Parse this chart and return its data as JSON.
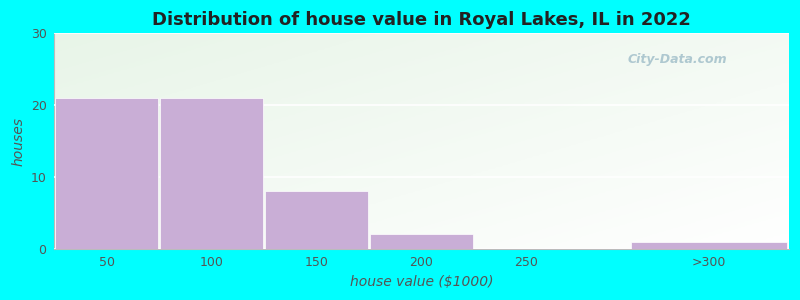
{
  "title": "Distribution of house value in Royal Lakes, IL in 2022",
  "xlabel": "house value ($1000)",
  "ylabel": "houses",
  "categories": [
    "50",
    "100",
    "150",
    "200",
    "250",
    ">300"
  ],
  "values": [
    21,
    21,
    8,
    2,
    0,
    1
  ],
  "bar_color": "#c9aed6",
  "ylim": [
    0,
    30
  ],
  "yticks": [
    0,
    10,
    20,
    30
  ],
  "background_color": "#00ffff",
  "title_fontsize": 13,
  "label_fontsize": 10,
  "tick_fontsize": 9,
  "bar_positions": [
    25,
    75,
    125,
    175,
    225,
    312
  ],
  "bar_widths": [
    50,
    50,
    50,
    50,
    50,
    75
  ],
  "xlim": [
    0,
    350
  ],
  "watermark": "City-Data.com",
  "watermark_color": "#aec8d0",
  "bg_colors": [
    "#e8f5e9",
    "#f5fff5",
    "#ffffff"
  ],
  "grid_color": "#ffffff",
  "spine_color": "#bbbbbb",
  "text_color": "#555555"
}
